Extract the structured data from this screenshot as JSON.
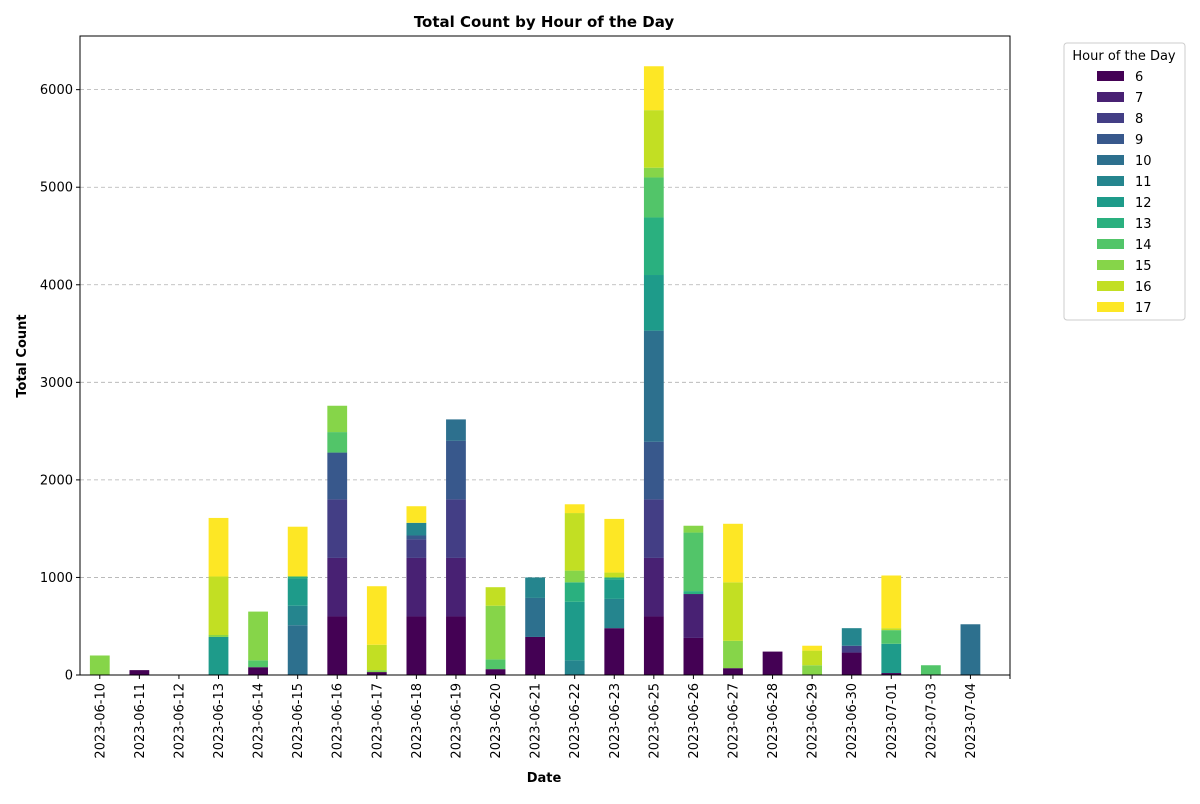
{
  "chart_data": {
    "type": "bar",
    "stacked": true,
    "title": "Total Count by Hour of the Day",
    "xlabel": "Date",
    "ylabel": "Total Count",
    "ylim": [
      0,
      6550
    ],
    "yticks": [
      0,
      1000,
      2000,
      3000,
      4000,
      5000,
      6000
    ],
    "grid": "y-dashed",
    "legend_title": "Hour of the Day",
    "legend_position": "outside-top-right",
    "categories": [
      "2023-06-10",
      "2023-06-11",
      "2023-06-12",
      "2023-06-13",
      "2023-06-14",
      "2023-06-15",
      "2023-06-16",
      "2023-06-17",
      "2023-06-18",
      "2023-06-19",
      "2023-06-20",
      "2023-06-21",
      "2023-06-22",
      "2023-06-23",
      "2023-06-25",
      "2023-06-26",
      "2023-06-27",
      "2023-06-28",
      "2023-06-29",
      "2023-06-30",
      "2023-07-01",
      "2023-07-03",
      "2023-07-04"
    ],
    "series": [
      {
        "name": "6",
        "color": "#440154",
        "values": [
          0,
          50,
          0,
          0,
          80,
          0,
          600,
          30,
          600,
          600,
          60,
          390,
          0,
          480,
          600,
          380,
          70,
          240,
          0,
          230,
          20,
          0,
          0
        ]
      },
      {
        "name": "7",
        "color": "#482173",
        "values": [
          0,
          0,
          0,
          0,
          0,
          0,
          600,
          0,
          600,
          600,
          0,
          0,
          0,
          0,
          600,
          450,
          0,
          0,
          0,
          0,
          0,
          0,
          0
        ]
      },
      {
        "name": "8",
        "color": "#433e85",
        "values": [
          0,
          0,
          0,
          0,
          0,
          0,
          600,
          0,
          190,
          600,
          0,
          0,
          0,
          0,
          600,
          0,
          0,
          0,
          0,
          70,
          0,
          0,
          0
        ]
      },
      {
        "name": "9",
        "color": "#38588c",
        "values": [
          0,
          0,
          0,
          0,
          0,
          0,
          480,
          0,
          40,
          600,
          0,
          0,
          0,
          0,
          590,
          0,
          0,
          0,
          0,
          0,
          0,
          0,
          0
        ]
      },
      {
        "name": "10",
        "color": "#2d708e",
        "values": [
          0,
          0,
          0,
          0,
          0,
          510,
          0,
          0,
          0,
          220,
          0,
          400,
          0,
          0,
          1140,
          0,
          0,
          0,
          0,
          0,
          0,
          0,
          520
        ]
      },
      {
        "name": "11",
        "color": "#25858e",
        "values": [
          0,
          0,
          0,
          0,
          0,
          200,
          0,
          0,
          130,
          0,
          0,
          210,
          150,
          300,
          0,
          0,
          0,
          0,
          0,
          180,
          0,
          0,
          0
        ]
      },
      {
        "name": "12",
        "color": "#1e9b8a",
        "values": [
          0,
          0,
          0,
          390,
          0,
          280,
          0,
          0,
          0,
          0,
          0,
          0,
          600,
          200,
          570,
          0,
          0,
          0,
          0,
          0,
          300,
          0,
          0
        ]
      },
      {
        "name": "13",
        "color": "#2ab07f",
        "values": [
          0,
          0,
          0,
          0,
          0,
          20,
          0,
          0,
          0,
          0,
          0,
          0,
          200,
          20,
          590,
          30,
          0,
          0,
          0,
          0,
          0,
          0,
          0
        ]
      },
      {
        "name": "14",
        "color": "#52c569",
        "values": [
          0,
          0,
          0,
          0,
          70,
          0,
          210,
          0,
          0,
          0,
          100,
          0,
          0,
          0,
          410,
          600,
          0,
          0,
          0,
          0,
          140,
          100,
          0
        ]
      },
      {
        "name": "15",
        "color": "#86d549",
        "values": [
          200,
          0,
          0,
          20,
          500,
          0,
          270,
          20,
          0,
          0,
          550,
          0,
          120,
          0,
          100,
          70,
          280,
          0,
          100,
          0,
          0,
          0,
          0
        ]
      },
      {
        "name": "16",
        "color": "#c2df23",
        "values": [
          0,
          0,
          5,
          600,
          0,
          0,
          0,
          260,
          0,
          0,
          190,
          0,
          590,
          50,
          590,
          0,
          600,
          0,
          150,
          0,
          20,
          0,
          0
        ]
      },
      {
        "name": "17",
        "color": "#fde725",
        "values": [
          0,
          0,
          0,
          600,
          0,
          510,
          0,
          600,
          170,
          0,
          0,
          0,
          90,
          550,
          450,
          0,
          600,
          0,
          50,
          0,
          540,
          0,
          0
        ]
      }
    ]
  }
}
